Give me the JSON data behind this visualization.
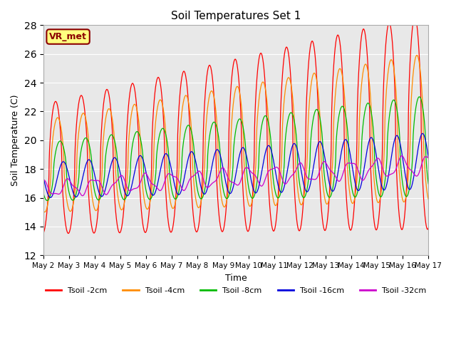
{
  "title": "Soil Temperatures Set 1",
  "xlabel": "Time",
  "ylabel": "Soil Temperature (C)",
  "ylim": [
    12,
    28
  ],
  "annotation_text": "VR_met",
  "annotation_bg": "#FFFF80",
  "annotation_border": "#8B0000",
  "bg_color": "#E8E8E8",
  "grid_color": "white",
  "series_colors": [
    "#FF0000",
    "#FF8C00",
    "#00BB00",
    "#0000DD",
    "#CC00CC"
  ],
  "series_labels": [
    "Tsoil -2cm",
    "Tsoil -4cm",
    "Tsoil -8cm",
    "Tsoil -16cm",
    "Tsoil -32cm"
  ],
  "num_days": 15,
  "points_per_day": 144,
  "start_day": 2
}
